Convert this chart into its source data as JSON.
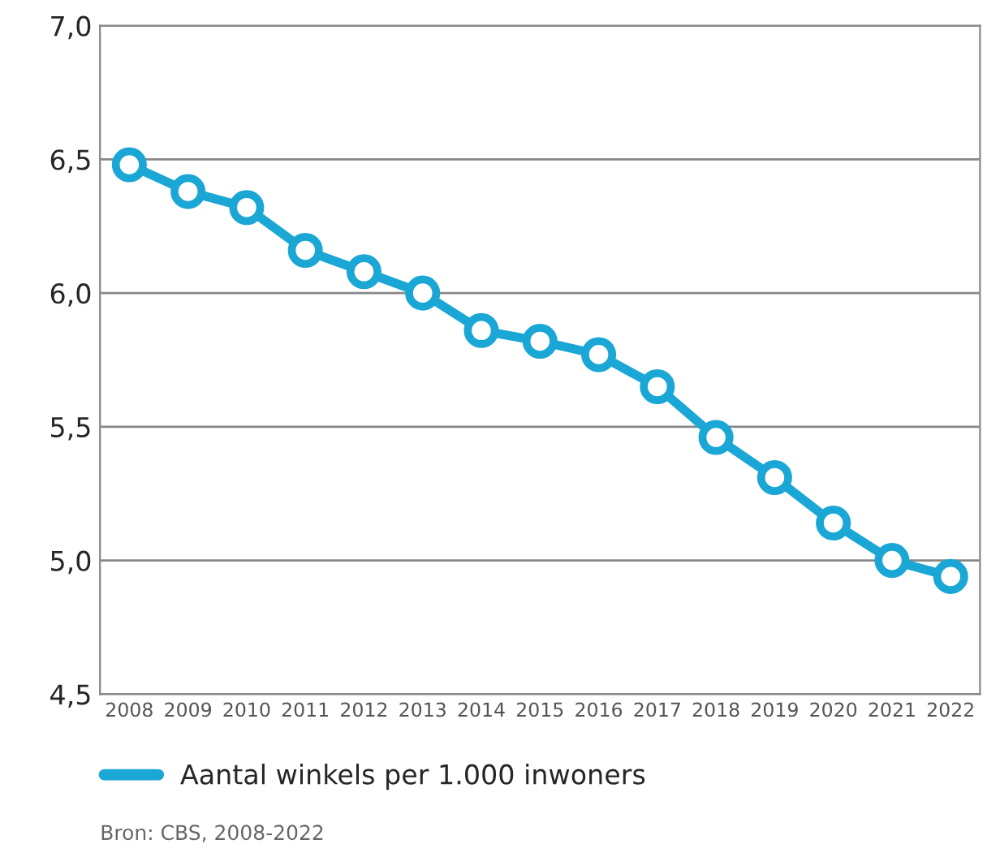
{
  "chart_data": {
    "type": "line",
    "categories": [
      "2008",
      "2009",
      "2010",
      "2011",
      "2012",
      "2013",
      "2014",
      "2015",
      "2016",
      "2017",
      "2018",
      "2019",
      "2020",
      "2021",
      "2022"
    ],
    "series": [
      {
        "name": "Aantal winkels per 1.000 inwoners",
        "color": "#1aa7d6",
        "values": [
          6.48,
          6.38,
          6.32,
          6.16,
          6.08,
          6.0,
          5.86,
          5.82,
          5.77,
          5.65,
          5.46,
          5.31,
          5.14,
          5.0,
          4.94
        ]
      }
    ],
    "ylim": [
      4.5,
      7.0
    ],
    "yticks": [
      {
        "value": 4.5,
        "label": "4,5"
      },
      {
        "value": 5.0,
        "label": "5,0"
      },
      {
        "value": 5.5,
        "label": "5,5"
      },
      {
        "value": 6.0,
        "label": "6,0"
      },
      {
        "value": 6.5,
        "label": "6,5"
      },
      {
        "value": 7.0,
        "label": "7,0"
      }
    ],
    "grid": "y",
    "legend": "bottom",
    "marker": "circle",
    "line_style": "solid",
    "annotations": [
      "Bron: CBS, 2008-2022"
    ]
  }
}
